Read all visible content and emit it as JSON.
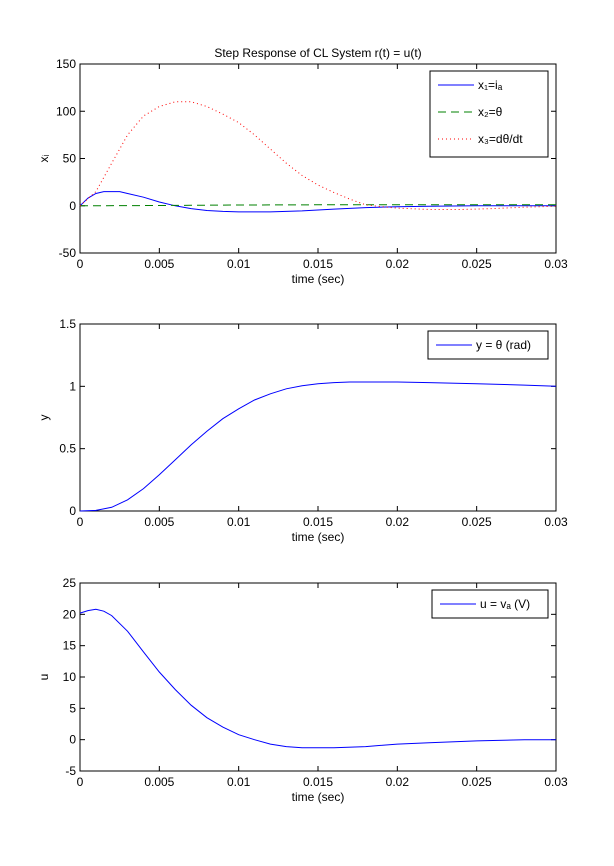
{
  "chart_data": [
    {
      "type": "line",
      "title": "Step Response of CL System r(t) = u(t)",
      "xlabel": "time (sec)",
      "ylabel": "xᵢ",
      "xlim": [
        0,
        0.03
      ],
      "ylim": [
        -50,
        150
      ],
      "xticks": [
        "0",
        "0.005",
        "0.01",
        "0.015",
        "0.02",
        "0.025",
        "0.03"
      ],
      "yticks": [
        "-50",
        "0",
        "50",
        "100",
        "150"
      ],
      "legend_position": "top-right",
      "series": [
        {
          "name": "x₁=iₐ",
          "color": "#0000ff",
          "style": "solid",
          "x": [
            0,
            0.0005,
            0.001,
            0.0015,
            0.002,
            0.0025,
            0.003,
            0.004,
            0.005,
            0.006,
            0.007,
            0.008,
            0.009,
            0.01,
            0.012,
            0.014,
            0.016,
            0.018,
            0.02,
            0.022,
            0.025,
            0.03
          ],
          "y": [
            0,
            8,
            13,
            15,
            15,
            15,
            13,
            9,
            4,
            0,
            -3,
            -5,
            -6,
            -6.5,
            -6.5,
            -5.5,
            -3.5,
            -2,
            -1,
            -0.5,
            0,
            0
          ]
        },
        {
          "name": "x₂=θ",
          "color": "#008000",
          "style": "dashed",
          "x": [
            0,
            0.005,
            0.01,
            0.015,
            0.02,
            0.025,
            0.03
          ],
          "y": [
            0,
            0.29,
            0.82,
            1.02,
            1.035,
            1.02,
            1.0
          ]
        },
        {
          "name": "x₃=dθ/dt",
          "color": "#ff0000",
          "style": "dotted",
          "x": [
            0,
            0.001,
            0.002,
            0.003,
            0.004,
            0.005,
            0.006,
            0.007,
            0.008,
            0.009,
            0.01,
            0.011,
            0.012,
            0.013,
            0.014,
            0.015,
            0.016,
            0.017,
            0.018,
            0.019,
            0.02,
            0.022,
            0.024,
            0.026,
            0.028,
            0.03
          ],
          "y": [
            0,
            15,
            45,
            75,
            95,
            105,
            110,
            110,
            105,
            97,
            88,
            75,
            60,
            45,
            32,
            22,
            14,
            7,
            1,
            -1,
            -2.5,
            -4,
            -4,
            -3,
            -1.5,
            -0.5
          ]
        }
      ]
    },
    {
      "type": "line",
      "title": "",
      "xlabel": "time (sec)",
      "ylabel": "y",
      "xlim": [
        0,
        0.03
      ],
      "ylim": [
        0,
        1.5
      ],
      "xticks": [
        "0",
        "0.005",
        "0.01",
        "0.015",
        "0.02",
        "0.025",
        "0.03"
      ],
      "yticks": [
        "0",
        "0.5",
        "1",
        "1.5"
      ],
      "legend_position": "top-right",
      "series": [
        {
          "name": "y = θ (rad)",
          "color": "#0000ff",
          "style": "solid",
          "x": [
            0,
            0.001,
            0.002,
            0.003,
            0.004,
            0.005,
            0.006,
            0.007,
            0.008,
            0.009,
            0.01,
            0.011,
            0.012,
            0.013,
            0.014,
            0.015,
            0.016,
            0.017,
            0.018,
            0.02,
            0.022,
            0.025,
            0.028,
            0.03
          ],
          "y": [
            0,
            0.005,
            0.03,
            0.09,
            0.18,
            0.29,
            0.41,
            0.53,
            0.64,
            0.74,
            0.82,
            0.89,
            0.94,
            0.98,
            1.005,
            1.02,
            1.03,
            1.035,
            1.035,
            1.035,
            1.03,
            1.02,
            1.01,
            1.0
          ]
        }
      ]
    },
    {
      "type": "line",
      "title": "",
      "xlabel": "time (sec)",
      "ylabel": "u",
      "xlim": [
        0,
        0.03
      ],
      "ylim": [
        -5,
        25
      ],
      "xticks": [
        "0",
        "0.005",
        "0.01",
        "0.015",
        "0.02",
        "0.025",
        "0.03"
      ],
      "yticks": [
        "-5",
        "0",
        "5",
        "10",
        "15",
        "20",
        "25"
      ],
      "legend_position": "top-right",
      "series": [
        {
          "name": "u = vₐ (V)",
          "color": "#0000ff",
          "style": "solid",
          "x": [
            0,
            0.0005,
            0.001,
            0.0015,
            0.002,
            0.003,
            0.004,
            0.005,
            0.006,
            0.007,
            0.008,
            0.009,
            0.01,
            0.011,
            0.012,
            0.013,
            0.014,
            0.015,
            0.016,
            0.018,
            0.02,
            0.022,
            0.025,
            0.028,
            0.03
          ],
          "y": [
            20.2,
            20.6,
            20.8,
            20.5,
            19.8,
            17.3,
            14,
            10.8,
            8,
            5.5,
            3.5,
            2,
            0.8,
            0,
            -0.7,
            -1.1,
            -1.3,
            -1.3,
            -1.3,
            -1.1,
            -0.7,
            -0.5,
            -0.2,
            0,
            0
          ]
        }
      ]
    }
  ]
}
